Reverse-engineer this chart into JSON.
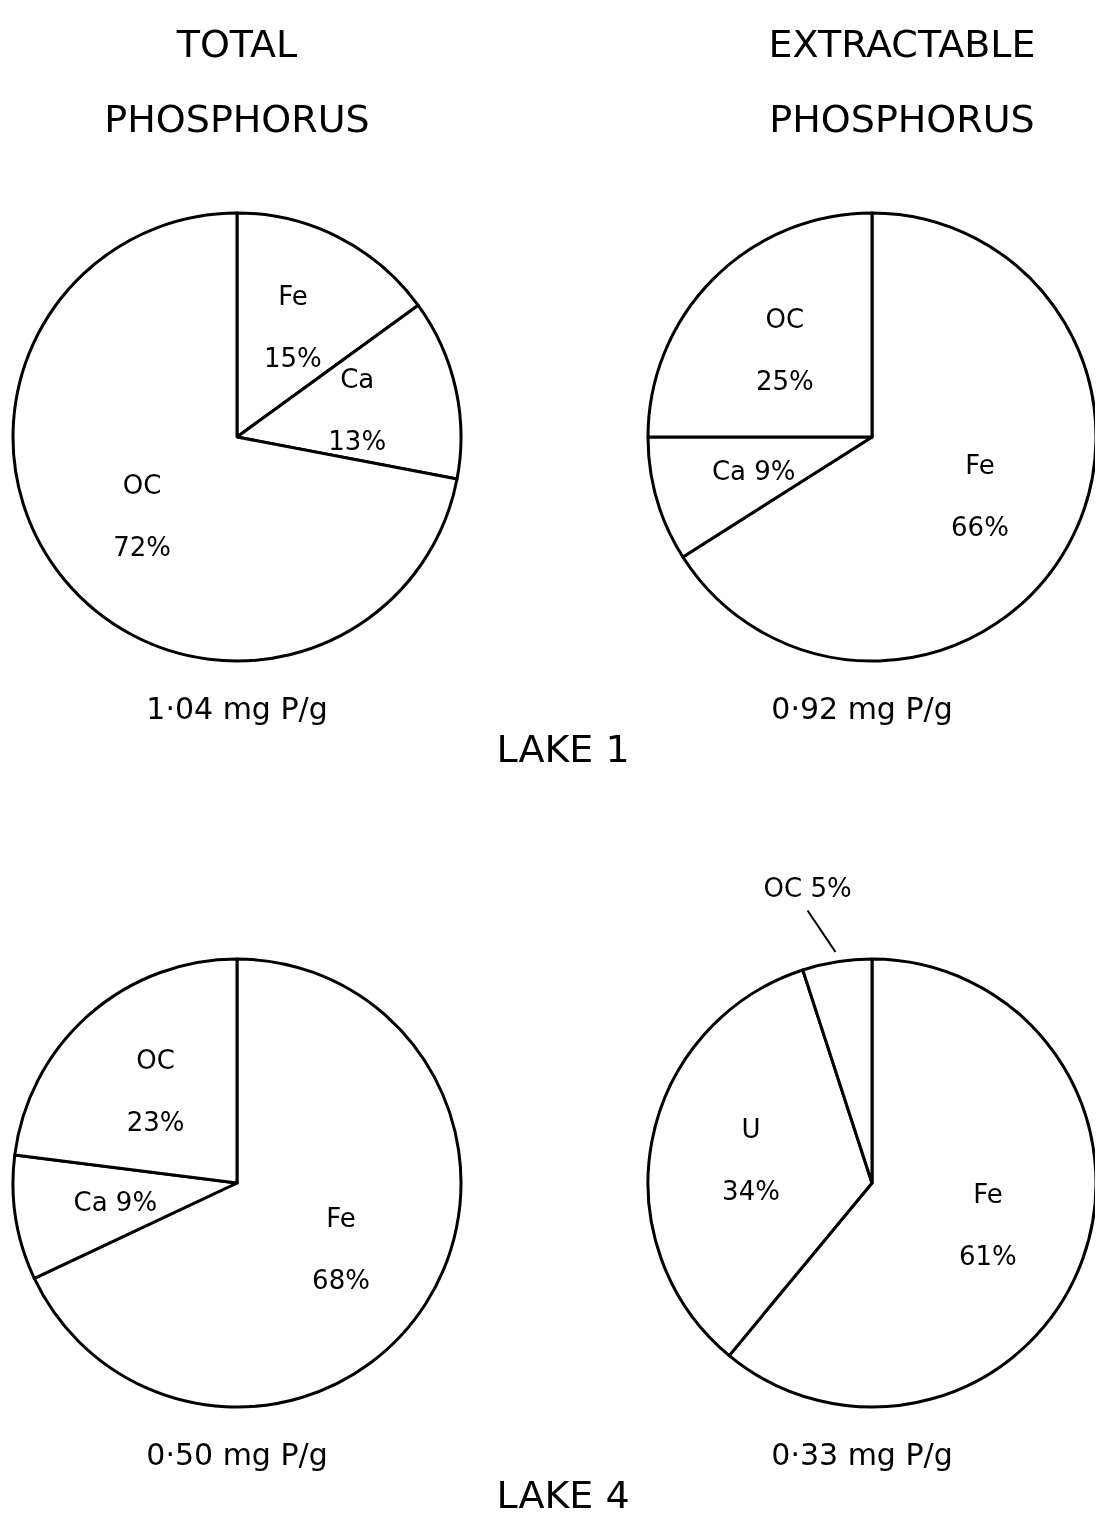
{
  "chart_data": [
    {
      "type": "pie",
      "title": "TOTAL PHOSPHORUS",
      "xlabel": "1·04 mg P/g",
      "annotations": [
        "LAKE 1"
      ],
      "categories": [
        "Fe",
        "Ca",
        "OC"
      ],
      "values": [
        15,
        13,
        72
      ],
      "value_labels": [
        "15%",
        "13%",
        "72%"
      ],
      "colors": [
        "#ffffff",
        "#ffffff",
        "#ffffff"
      ]
    },
    {
      "type": "pie",
      "title": "EXTRACTABLE PHOSPHORUS",
      "xlabel": "0·92 mg P/g",
      "categories": [
        "Fe",
        "Ca",
        "OC"
      ],
      "values": [
        66,
        9,
        25
      ],
      "value_labels": [
        "66%",
        "9%",
        "25%"
      ],
      "colors": [
        "#ffffff",
        "#ffffff",
        "#ffffff"
      ]
    },
    {
      "type": "pie",
      "xlabel": "0·50 mg P/g",
      "annotations": [
        "LAKE 4"
      ],
      "categories": [
        "Fe",
        "Ca",
        "OC"
      ],
      "values": [
        68,
        9,
        23
      ],
      "value_labels": [
        "68%",
        "9%",
        "23%"
      ],
      "colors": [
        "#ffffff",
        "#ffffff",
        "#ffffff"
      ]
    },
    {
      "type": "pie",
      "xlabel": "0·33 mg P/g",
      "categories": [
        "Fe",
        "U",
        "OC"
      ],
      "values": [
        61,
        34,
        5
      ],
      "value_labels": [
        "61%",
        "34%",
        "5%"
      ],
      "colors": [
        "#ffffff",
        "#ffffff",
        "#ffffff"
      ]
    }
  ]
}
